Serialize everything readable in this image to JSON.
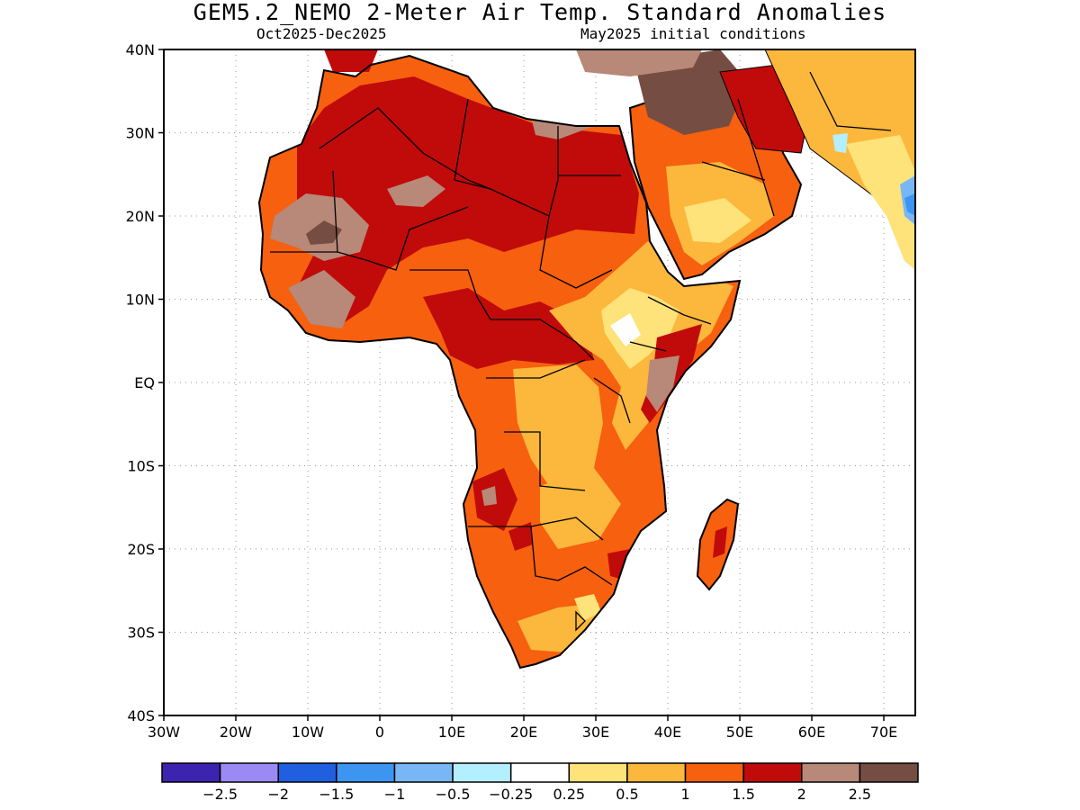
{
  "title": "GEM5.2_NEMO 2-Meter Air Temp. Standard Anomalies",
  "period": "Oct2025-Dec2025",
  "initial_conditions": "May2025 initial conditions",
  "y_axis": [
    "40N",
    "30N",
    "20N",
    "10N",
    "EQ",
    "10S",
    "20S",
    "30S",
    "40S"
  ],
  "x_axis": [
    "30W",
    "20W",
    "10W",
    "0",
    "10E",
    "20E",
    "30E",
    "40E",
    "50E",
    "60E",
    "70E"
  ],
  "colorbar": {
    "colors": [
      "#3d24b0",
      "#9b8af4",
      "#1f5fe0",
      "#3d95f2",
      "#78b6f6",
      "#b3efff",
      "#ffffff",
      "#fee27a",
      "#fcb83c",
      "#f6600f",
      "#c10a0a",
      "#b88878",
      "#754d42"
    ],
    "labels": [
      "-2.5",
      "-2",
      "-1.5",
      "-1",
      "-0.5",
      "-0.25",
      "0.25",
      "0.5",
      "1",
      "1.5",
      "2",
      "2.5"
    ]
  },
  "region_colors": {
    "land_base": "#f6600f",
    "hot": "#c10a0a",
    "very_hot": "#b88878",
    "extreme": "#754d42",
    "warm": "#fcb83c",
    "mild": "#fee27a",
    "neutral": "#ffffff",
    "cool": "#b3efff",
    "cooler": "#78b6f6",
    "cold": "#3d95f2"
  }
}
